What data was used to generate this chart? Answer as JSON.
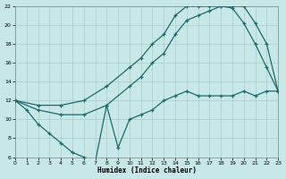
{
  "xlabel": "Humidex (Indice chaleur)",
  "xlim": [
    0,
    23
  ],
  "ylim": [
    6,
    22
  ],
  "yticks": [
    6,
    8,
    10,
    12,
    14,
    16,
    18,
    20,
    22
  ],
  "xticks": [
    0,
    1,
    2,
    3,
    4,
    5,
    6,
    7,
    8,
    9,
    10,
    11,
    12,
    13,
    14,
    15,
    16,
    17,
    18,
    19,
    20,
    21,
    22,
    23
  ],
  "bg_color": "#c8e8e8",
  "grid_color": "#aacccc",
  "line_color": "#1a6b6b",
  "line1_x": [
    0,
    1,
    2,
    3,
    4,
    5,
    6,
    7,
    8,
    9,
    10,
    11,
    12,
    13,
    14,
    15,
    16,
    17,
    18,
    19,
    20,
    21,
    22,
    23
  ],
  "line1_y": [
    12.0,
    11.0,
    9.5,
    8.5,
    7.5,
    6.5,
    6.0,
    5.5,
    11.5,
    7.0,
    10.0,
    10.5,
    11.0,
    12.0,
    12.5,
    13.0,
    12.5,
    12.5,
    12.5,
    12.5,
    13.0,
    12.5,
    13.0,
    13.0
  ],
  "line2_x": [
    0,
    2,
    4,
    6,
    8,
    10,
    11,
    12,
    13,
    14,
    15,
    16,
    17,
    18,
    19,
    20,
    21,
    22,
    23
  ],
  "line2_y": [
    12.0,
    11.0,
    10.5,
    10.5,
    11.5,
    13.5,
    14.5,
    16.0,
    17.0,
    19.0,
    20.5,
    21.0,
    21.5,
    22.0,
    21.8,
    20.2,
    18.0,
    15.5,
    13.0
  ],
  "line3_x": [
    0,
    2,
    4,
    6,
    8,
    10,
    11,
    12,
    13,
    14,
    15,
    16,
    17,
    18,
    19,
    20,
    21,
    22,
    23
  ],
  "line3_y": [
    12.0,
    11.5,
    11.5,
    12.0,
    13.5,
    15.5,
    16.5,
    18.0,
    19.0,
    21.0,
    22.0,
    22.0,
    22.0,
    22.0,
    22.0,
    22.0,
    20.2,
    18.0,
    13.0
  ]
}
